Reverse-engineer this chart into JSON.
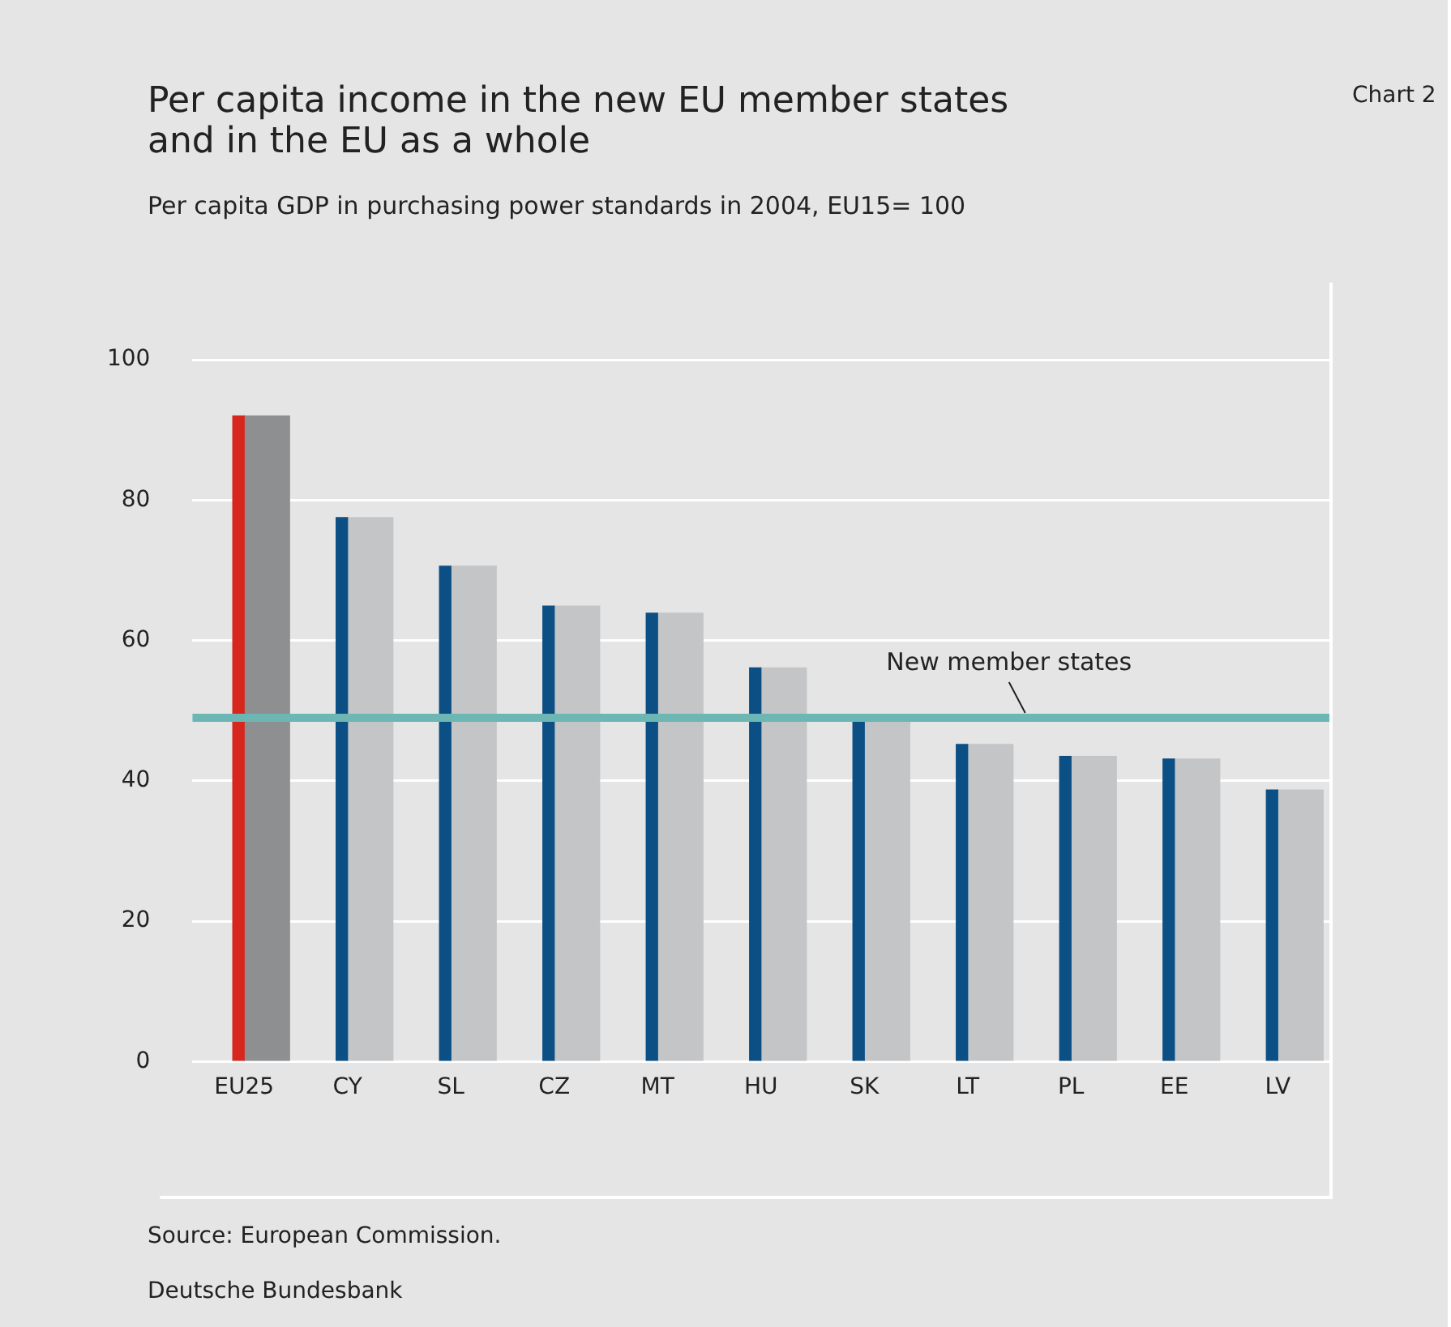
{
  "chart_data": {
    "type": "bar",
    "title": "Per capita income in the new EU member states and in the EU as a whole",
    "subtitle": "Per capita GDP in purchasing power standards in 2004, EU15= 100",
    "categories": [
      "EU25",
      "CY",
      "SL",
      "CZ",
      "MT",
      "HU",
      "SK",
      "LT",
      "PL",
      "EE",
      "LV"
    ],
    "series": [
      {
        "colors": [
          "#d7261e",
          "#0b4f85",
          "#0b4f85",
          "#0b4f85",
          "#0b4f85",
          "#0b4f85",
          "#0b4f85",
          "#0b4f85",
          "#0b4f85",
          "#0b4f85",
          "#0b4f85"
        ],
        "values": [
          92,
          77.5,
          70.6,
          64.9,
          63.9,
          56.1,
          48.5,
          45.2,
          43.5,
          43.1,
          38.7
        ]
      },
      {
        "colors": [
          "#8e8f91",
          "#c4c5c7",
          "#c4c5c7",
          "#c4c5c7",
          "#c4c5c7",
          "#c4c5c7",
          "#c4c5c7",
          "#c4c5c7",
          "#c4c5c7",
          "#c4c5c7",
          "#c4c5c7"
        ],
        "values": [
          92,
          77.5,
          70.6,
          64.9,
          63.9,
          56.1,
          48.5,
          45.2,
          43.5,
          43.1,
          38.7
        ]
      }
    ],
    "ylim": [
      0,
      111
    ],
    "yticks": [
      0,
      20,
      40,
      60,
      80,
      100
    ],
    "grid": "y",
    "legend": false,
    "ref_lines": [
      {
        "axis": "y",
        "value": 49,
        "label": "New member states",
        "color": "#6cb7b4"
      }
    ],
    "annotations": [
      "Chart 2",
      "Source: European Commission.",
      "Deutsche Bundesbank"
    ]
  }
}
